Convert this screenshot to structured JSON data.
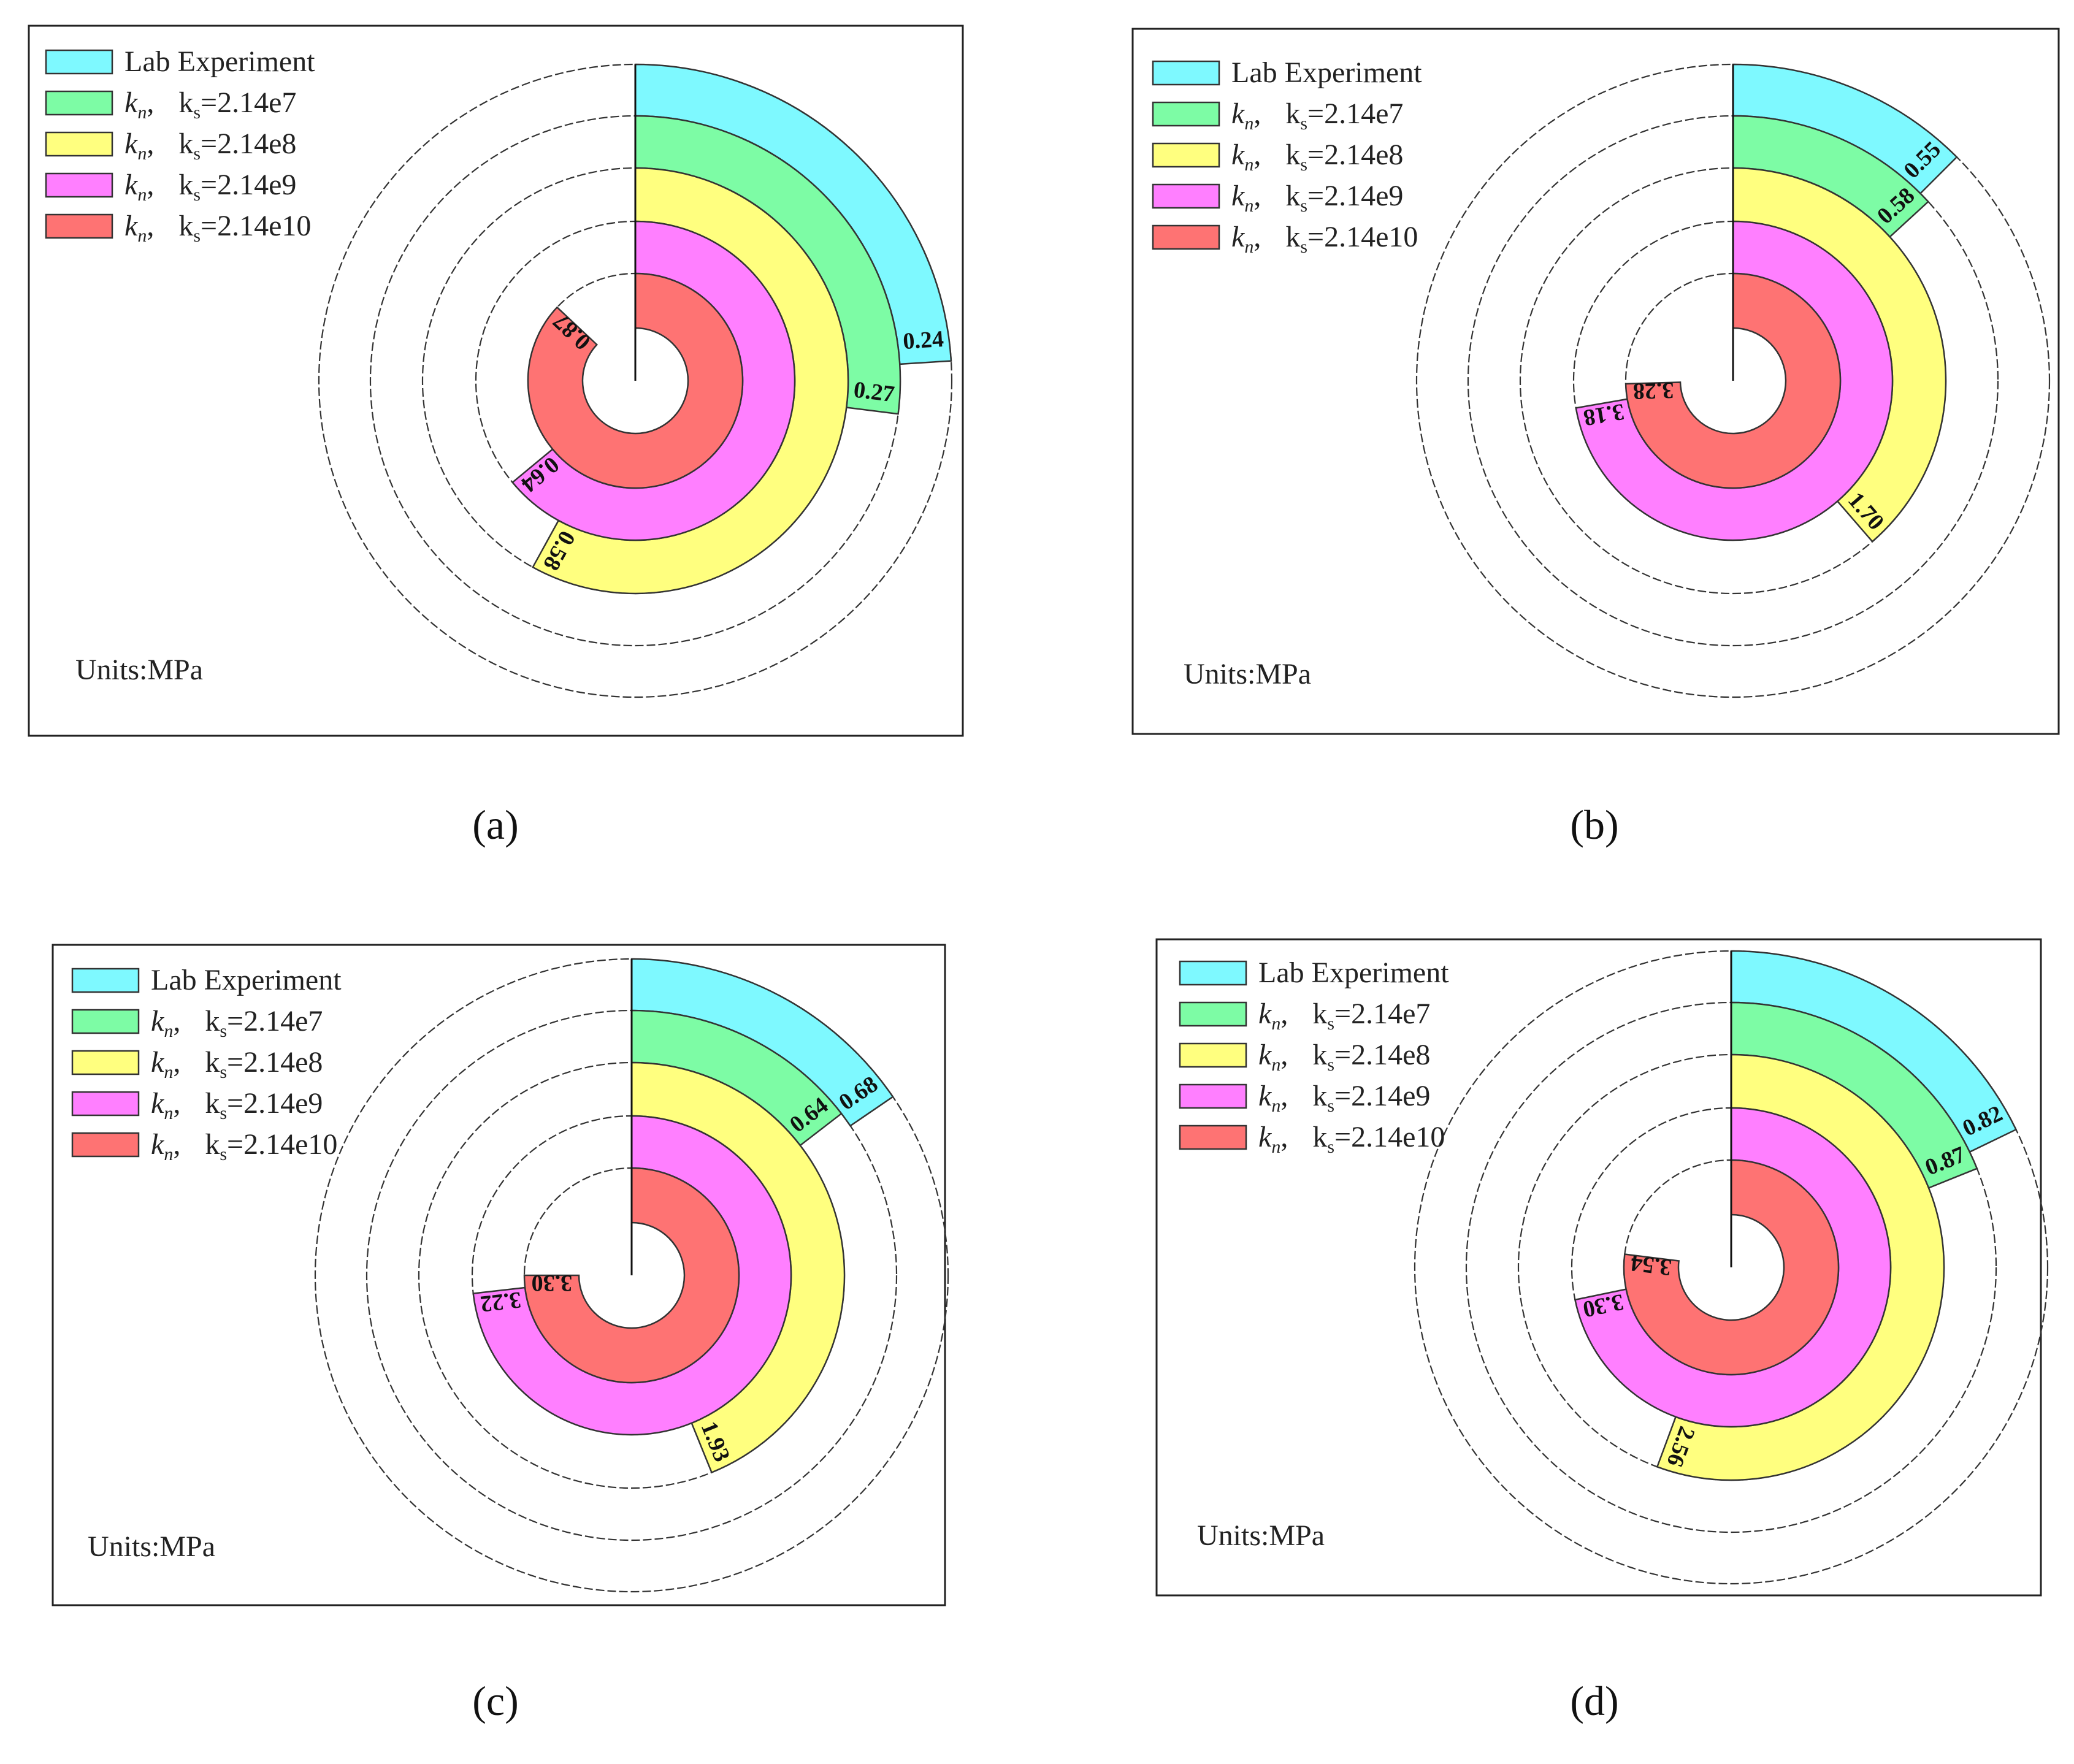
{
  "figure_type": "multi-panel radial bar chart",
  "colors": {
    "lab": "#7ef9ff",
    "ks7": "#7dfca5",
    "ks8": "#ffff7f",
    "ks9": "#ff7fff",
    "ks10": "#fe7373"
  },
  "chart_data": [
    {
      "type": "radial-bar",
      "panel": "a",
      "caption": "(a)",
      "units": "Units:MPa",
      "angle_range_deg": [
        0,
        360
      ],
      "scale_note": "bar sweep angle proportional to value",
      "categories": [
        "Lab Experiment",
        "kn, ks=2.14e7",
        "kn, ks=2.14e8",
        "kn, ks=2.14e9",
        "kn, ks=2.14e10"
      ],
      "values": [
        0.24,
        0.27,
        0.58,
        0.64,
        0.87
      ],
      "labels": [
        "0.24",
        "0.27",
        "0.58",
        "0.64",
        "0.87"
      ]
    },
    {
      "type": "radial-bar",
      "panel": "b",
      "caption": "(b)",
      "units": "Units:MPa",
      "angle_range_deg": [
        0,
        360
      ],
      "scale_note": "bar sweep angle proportional to value",
      "categories": [
        "Lab Experiment",
        "kn, ks=2.14e7",
        "kn, ks=2.14e8",
        "kn, ks=2.14e9",
        "kn, ks=2.14e10"
      ],
      "values": [
        0.55,
        0.58,
        1.7,
        3.18,
        3.28
      ],
      "labels": [
        "0.55",
        "0.58",
        "1.70",
        "3.18",
        "3.28"
      ]
    },
    {
      "type": "radial-bar",
      "panel": "c",
      "caption": "(c)",
      "units": "Units:MPa",
      "angle_range_deg": [
        0,
        360
      ],
      "scale_note": "bar sweep angle proportional to value",
      "categories": [
        "Lab Experiment",
        "kn, ks=2.14e7",
        "kn, ks=2.14e8",
        "kn, ks=2.14e9",
        "kn, ks=2.14e10"
      ],
      "values": [
        0.68,
        0.64,
        1.93,
        3.22,
        3.3
      ],
      "labels": [
        "0.68",
        "0.64",
        "1.93",
        "3.22",
        "3.30"
      ]
    },
    {
      "type": "radial-bar",
      "panel": "d",
      "caption": "(d)",
      "units": "Units:MPa",
      "angle_range_deg": [
        0,
        360
      ],
      "scale_note": "bar sweep angle proportional to value",
      "categories": [
        "Lab Experiment",
        "kn, ks=2.14e7",
        "kn, ks=2.14e8",
        "kn, ks=2.14e9",
        "kn, ks=2.14e10"
      ],
      "values": [
        0.82,
        0.87,
        2.56,
        3.3,
        3.54
      ],
      "labels": [
        "0.82",
        "0.87",
        "2.56",
        "3.30",
        "3.54"
      ]
    }
  ],
  "legend": {
    "lab_label": "Lab Experiment",
    "items": [
      {
        "key": "ks7",
        "kn": "k",
        "kn_sub": "n",
        "sep": ",",
        "ks": "k",
        "ks_sub": "s",
        "value": "=2.14e7"
      },
      {
        "key": "ks8",
        "kn": "k",
        "kn_sub": "n",
        "sep": ",",
        "ks": "k",
        "ks_sub": "s",
        "value": "=2.14e8"
      },
      {
        "key": "ks9",
        "kn": "k",
        "kn_sub": "n",
        "sep": ",",
        "ks": "k",
        "ks_sub": "s",
        "value": "=2.14e9"
      },
      {
        "key": "ks10",
        "kn": "k",
        "kn_sub": "n",
        "sep": ",",
        "ks": "k",
        "ks_sub": "s",
        "value": "=2.14e10"
      }
    ]
  }
}
